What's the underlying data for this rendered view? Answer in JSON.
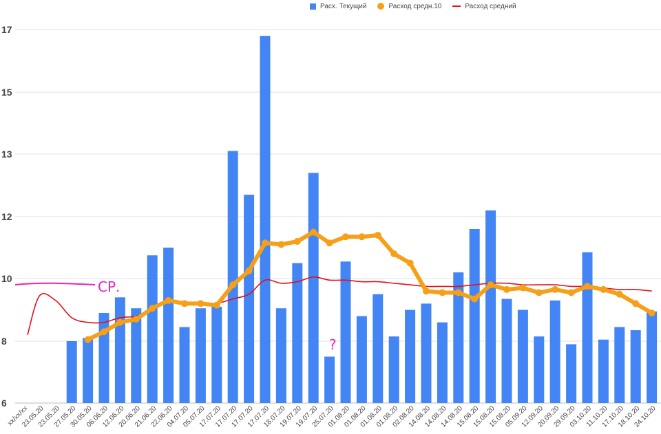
{
  "legend": {
    "items": [
      {
        "label": "Расх. Текущий",
        "color": "#4385f4",
        "kind": "bar"
      },
      {
        "label": "Расход средн.10",
        "color": "#f6a01a",
        "kind": "marker-line"
      },
      {
        "label": "Расход средний",
        "color": "#e40f18",
        "kind": "line"
      }
    ]
  },
  "chart_data": {
    "type": "bar",
    "title": "",
    "xlabel": "",
    "ylabel": "",
    "ylim": [
      6,
      18
    ],
    "yticks": [
      6,
      8,
      10,
      12,
      13,
      15,
      17
    ],
    "grid": true,
    "legend_position": "top",
    "categories": [
      "xx/xx/xx",
      "23.05.20",
      "23.05.20",
      "27.05.20",
      "30.05.20",
      "06.06.20",
      "12.06.20",
      "20.06.20",
      "21.06.20",
      "22.06.20",
      "04.07.20",
      "05.07.20",
      "17.07.20",
      "17.07.20",
      "17.07.20",
      "17.07.20",
      "18.07.20",
      "19.07.20",
      "19.07.20",
      "25.07.20",
      "01.08.20",
      "01.08.20",
      "01.08.20",
      "01.08.20",
      "02.08.20",
      "14.08.20",
      "14.08.20",
      "14.08.20",
      "15.08.20",
      "15.08.20",
      "15.08.20",
      "05.09.20",
      "12.09.20",
      "20.09.20",
      "29.09.20",
      "03.10.20",
      "11.10.20",
      "17.10.20",
      "18.10.20",
      "24.10.20"
    ],
    "series": [
      {
        "name": "Расх. Текущий",
        "type": "bar",
        "color": "#4385f4",
        "values": [
          null,
          null,
          null,
          8,
          8.1,
          8.9,
          9.4,
          9.05,
          10.75,
          11,
          8.45,
          9.05,
          9.1,
          13.1,
          12.35,
          16.8,
          9.05,
          10.5,
          12.7,
          7.5,
          10.55,
          8.8,
          9.5,
          8.15,
          9,
          9.2,
          8.6,
          10.2,
          11.6,
          12.1,
          9.35,
          9,
          8.15,
          9.3,
          7.9,
          10.85,
          8.05,
          8.45,
          8.35,
          8.95
        ]
      },
      {
        "name": "Расход средн.10",
        "type": "line",
        "color": "#f6a01a",
        "values": [
          null,
          null,
          null,
          null,
          8.05,
          8.3,
          8.6,
          8.7,
          9.05,
          9.3,
          9.2,
          9.2,
          9.15,
          9.8,
          10.25,
          11.15,
          11.1,
          11.2,
          11.5,
          11.15,
          11.35,
          11.35,
          11.4,
          10.8,
          10.5,
          9.6,
          9.55,
          9.55,
          9.35,
          9.8,
          9.65,
          9.7,
          9.55,
          9.65,
          9.55,
          9.75,
          9.65,
          9.5,
          9.2,
          8.9
        ]
      },
      {
        "name": "Расход средний",
        "type": "line",
        "color": "#e40f18",
        "values": [
          8.2,
          9.45,
          9.3,
          8.75,
          8.6,
          8.6,
          8.75,
          8.8,
          9,
          9.25,
          9.2,
          9.15,
          9.2,
          9.35,
          9.5,
          9.95,
          9.85,
          9.9,
          10.05,
          9.95,
          9.95,
          9.9,
          9.9,
          9.85,
          9.8,
          9.75,
          9.75,
          9.75,
          9.8,
          9.85,
          9.85,
          9.8,
          9.8,
          9.8,
          9.75,
          9.75,
          9.7,
          9.65,
          9.65,
          9.6
        ]
      }
    ],
    "annotations": [
      {
        "text": "СР.",
        "color": "#ea1fc2"
      },
      {
        "text": "?",
        "color": "#ea1fc2"
      }
    ]
  }
}
